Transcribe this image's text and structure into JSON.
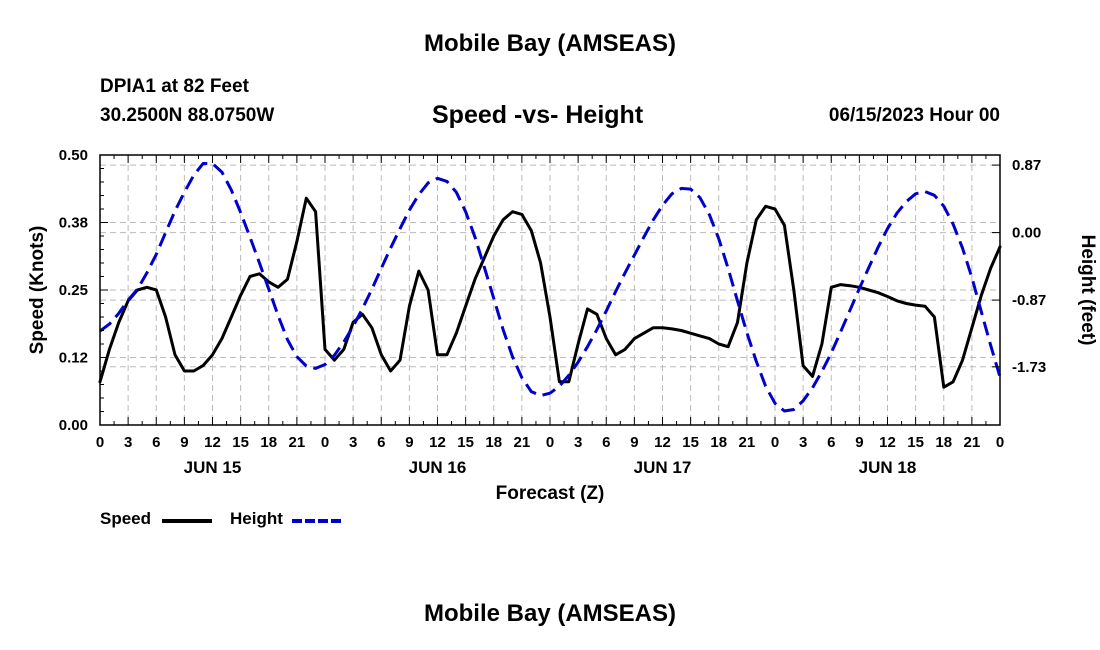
{
  "header": {
    "title": "Mobile Bay (AMSEAS)",
    "station": "DPIA1 at 82 Feet",
    "coords": "30.2500N  88.0750W",
    "subtitle": "Speed -vs- Height",
    "datetime": "06/15/2023 Hour 00"
  },
  "footer": {
    "title": "Mobile Bay (AMSEAS)"
  },
  "legend": {
    "speed": "Speed",
    "height": "Height"
  },
  "chart_data": {
    "type": "line",
    "title": "Speed -vs- Height",
    "xlabel": "Forecast (Z)",
    "ylabel_left": "Speed (Knots)",
    "ylabel_right": "Height (feet)",
    "x_unit": "hours since 06/15/2023 00Z",
    "xlim": [
      0,
      96
    ],
    "ylim_left": [
      0,
      0.5
    ],
    "ylim_right": [
      -2.48,
      1.0
    ],
    "left_ticks": [
      "0.00",
      "0.12",
      "0.25",
      "0.38",
      "0.50"
    ],
    "left_tick_values": [
      0,
      0.125,
      0.25,
      0.375,
      0.5
    ],
    "right_ticks": [
      "0.87",
      "0.00",
      "-0.87",
      "-1.73"
    ],
    "right_tick_values": [
      0.87,
      0.0,
      -0.87,
      -1.73
    ],
    "x_ticks": [
      "0",
      "3",
      "6",
      "9",
      "12",
      "15",
      "18",
      "21",
      "0",
      "3",
      "6",
      "9",
      "12",
      "15",
      "18",
      "21",
      "0",
      "3",
      "6",
      "9",
      "12",
      "15",
      "18",
      "21",
      "0",
      "3",
      "6",
      "9",
      "12",
      "15",
      "18",
      "21",
      "0"
    ],
    "day_labels": [
      "JUN 15",
      "JUN 16",
      "JUN 17",
      "JUN 18"
    ],
    "grid": true,
    "legend_position": "bottom-left",
    "colors": {
      "speed": "#000000",
      "height": "#0000cc",
      "grid": "#bbbbbb"
    },
    "series": [
      {
        "name": "Speed",
        "axis": "left",
        "style": "solid",
        "x": [
          0,
          1,
          2,
          3,
          4,
          5,
          6,
          7,
          8,
          9,
          10,
          11,
          12,
          13,
          14,
          15,
          16,
          17,
          18,
          19,
          20,
          21,
          22,
          23,
          24,
          25,
          26,
          27,
          28,
          29,
          30,
          31,
          32,
          33,
          34,
          35,
          36,
          37,
          38,
          39,
          40,
          41,
          42,
          43,
          44,
          45,
          46,
          47,
          48,
          49,
          50,
          51,
          52,
          53,
          54,
          55,
          56,
          57,
          58,
          59,
          60,
          61,
          62,
          63,
          64,
          65,
          66,
          67,
          68,
          69,
          70,
          71,
          72,
          73,
          74,
          75,
          76,
          77,
          78,
          79,
          80,
          81,
          82,
          83,
          84,
          85,
          86,
          87,
          88,
          89,
          90,
          91,
          92,
          93,
          94,
          95,
          96
        ],
        "values": [
          0.08,
          0.14,
          0.19,
          0.23,
          0.25,
          0.255,
          0.25,
          0.2,
          0.13,
          0.1,
          0.1,
          0.11,
          0.13,
          0.16,
          0.2,
          0.24,
          0.275,
          0.28,
          0.265,
          0.255,
          0.27,
          0.34,
          0.42,
          0.395,
          0.14,
          0.12,
          0.14,
          0.19,
          0.205,
          0.18,
          0.13,
          0.1,
          0.12,
          0.22,
          0.285,
          0.25,
          0.13,
          0.13,
          0.17,
          0.22,
          0.27,
          0.31,
          0.35,
          0.38,
          0.395,
          0.39,
          0.36,
          0.3,
          0.2,
          0.08,
          0.08,
          0.15,
          0.215,
          0.205,
          0.16,
          0.13,
          0.14,
          0.16,
          0.17,
          0.18,
          0.18,
          0.178,
          0.175,
          0.17,
          0.165,
          0.16,
          0.15,
          0.145,
          0.19,
          0.3,
          0.38,
          0.405,
          0.4,
          0.37,
          0.25,
          0.11,
          0.09,
          0.15,
          0.255,
          0.26,
          0.258,
          0.255,
          0.25,
          0.245,
          0.238,
          0.23,
          0.225,
          0.222,
          0.22,
          0.2,
          0.07,
          0.08,
          0.12,
          0.18,
          0.24,
          0.29,
          0.33
        ]
      },
      {
        "name": "Height",
        "axis": "right",
        "style": "dashed",
        "x": [
          0,
          1,
          2,
          3,
          4,
          5,
          6,
          7,
          8,
          9,
          10,
          11,
          12,
          13,
          14,
          15,
          16,
          17,
          18,
          19,
          20,
          21,
          22,
          23,
          24,
          25,
          26,
          27,
          28,
          29,
          30,
          31,
          32,
          33,
          34,
          35,
          36,
          37,
          38,
          39,
          40,
          41,
          42,
          43,
          44,
          45,
          46,
          47,
          48,
          49,
          50,
          51,
          52,
          53,
          54,
          55,
          56,
          57,
          58,
          59,
          60,
          61,
          62,
          63,
          64,
          65,
          66,
          67,
          68,
          69,
          70,
          71,
          72,
          73,
          74,
          75,
          76,
          77,
          78,
          79,
          80,
          81,
          82,
          83,
          84,
          85,
          86,
          87,
          88,
          89,
          90,
          91,
          92,
          93,
          94,
          95,
          96
        ],
        "values": [
          -1.27,
          -1.18,
          -1.04,
          -0.87,
          -0.73,
          -0.52,
          -0.28,
          0.0,
          0.28,
          0.52,
          0.74,
          0.89,
          0.89,
          0.78,
          0.55,
          0.26,
          -0.06,
          -0.39,
          -0.73,
          -1.07,
          -1.38,
          -1.6,
          -1.72,
          -1.75,
          -1.7,
          -1.58,
          -1.41,
          -1.21,
          -0.98,
          -0.73,
          -0.46,
          -0.2,
          0.05,
          0.29,
          0.49,
          0.64,
          0.7,
          0.66,
          0.52,
          0.27,
          -0.06,
          -0.45,
          -0.85,
          -1.25,
          -1.6,
          -1.87,
          -2.05,
          -2.1,
          -2.07,
          -1.98,
          -1.84,
          -1.67,
          -1.47,
          -1.25,
          -1.01,
          -0.76,
          -0.52,
          -0.29,
          -0.06,
          0.16,
          0.35,
          0.5,
          0.57,
          0.56,
          0.45,
          0.23,
          -0.08,
          -0.46,
          -0.88,
          -1.29,
          -1.66,
          -1.98,
          -2.2,
          -2.3,
          -2.28,
          -2.17,
          -2.0,
          -1.79,
          -1.55,
          -1.28,
          -1.0,
          -0.72,
          -0.45,
          -0.19,
          0.05,
          0.25,
          0.4,
          0.5,
          0.53,
          0.48,
          0.34,
          0.11,
          -0.2,
          -0.58,
          -1.02,
          -1.45,
          -1.86
        ]
      }
    ]
  }
}
